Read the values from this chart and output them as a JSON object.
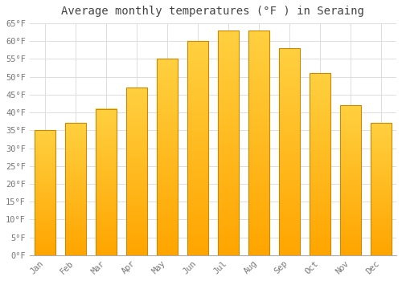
{
  "months": [
    "Jan",
    "Feb",
    "Mar",
    "Apr",
    "May",
    "Jun",
    "Jul",
    "Aug",
    "Sep",
    "Oct",
    "Nov",
    "Dec"
  ],
  "values": [
    35,
    37,
    41,
    47,
    55,
    60,
    63,
    63,
    58,
    51,
    42,
    37
  ],
  "bar_color_bottom": "#FFA500",
  "bar_color_top": "#FFD040",
  "bar_edge_color": "#CC8800",
  "title": "Average monthly temperatures (°F ) in Seraing",
  "ylim": [
    0,
    65
  ],
  "ytick_step": 5,
  "background_color": "#FFFFFF",
  "grid_color": "#DDDDDD",
  "title_fontsize": 10,
  "tick_fontsize": 7.5,
  "tick_color": "#777777",
  "font_family": "monospace",
  "bar_width": 0.7
}
